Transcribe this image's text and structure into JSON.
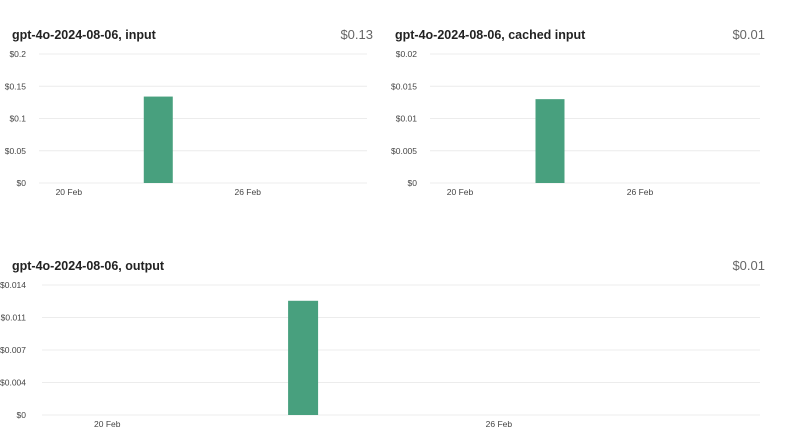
{
  "chart_data": [
    {
      "type": "bar",
      "title": "gpt-4o-2024-08-06, input",
      "total": "$0.13",
      "ylim": [
        0,
        0.2
      ],
      "yticks": [
        0,
        0.05,
        0.1,
        0.15,
        0.2
      ],
      "ytick_labels": [
        "$0",
        "$0.05",
        "$0.1",
        "$0.15",
        "$0.2"
      ],
      "x_range": [
        "2025-02-19",
        "2025-03-02"
      ],
      "xticks": [
        {
          "date": "2025-02-20",
          "label": "20 Feb"
        },
        {
          "date": "2025-02-26",
          "label": "26 Feb"
        }
      ],
      "bars": [
        {
          "date": "2025-02-23",
          "value": 0.134
        }
      ],
      "grid": true
    },
    {
      "type": "bar",
      "title": "gpt-4o-2024-08-06, cached input",
      "total": "$0.01",
      "ylim": [
        0,
        0.02
      ],
      "yticks": [
        0,
        0.005,
        0.01,
        0.015,
        0.02
      ],
      "ytick_labels": [
        "$0",
        "$0.005",
        "$0.01",
        "$0.015",
        "$0.02"
      ],
      "x_range": [
        "2025-02-19",
        "2025-03-02"
      ],
      "xticks": [
        {
          "date": "2025-02-20",
          "label": "20 Feb"
        },
        {
          "date": "2025-02-26",
          "label": "26 Feb"
        }
      ],
      "bars": [
        {
          "date": "2025-02-23",
          "value": 0.013
        }
      ],
      "grid": true
    },
    {
      "type": "bar",
      "title": "gpt-4o-2024-08-06, output",
      "total": "$0.01",
      "ylim": [
        0,
        0.014
      ],
      "yticks": [
        0,
        0.0035,
        0.007,
        0.0105,
        0.014
      ],
      "ytick_labels": [
        "$0",
        "$0.004",
        "$0.007",
        "$0.011",
        "$0.014"
      ],
      "x_range": [
        "2025-02-19",
        "2025-03-02"
      ],
      "xticks": [
        {
          "date": "2025-02-20",
          "label": "20 Feb"
        },
        {
          "date": "2025-02-26",
          "label": "26 Feb"
        }
      ],
      "bars": [
        {
          "date": "2025-02-23",
          "value": 0.0123
        }
      ],
      "grid": true
    }
  ],
  "colors": {
    "bar": "#48a07e",
    "grid": "#ececec"
  }
}
